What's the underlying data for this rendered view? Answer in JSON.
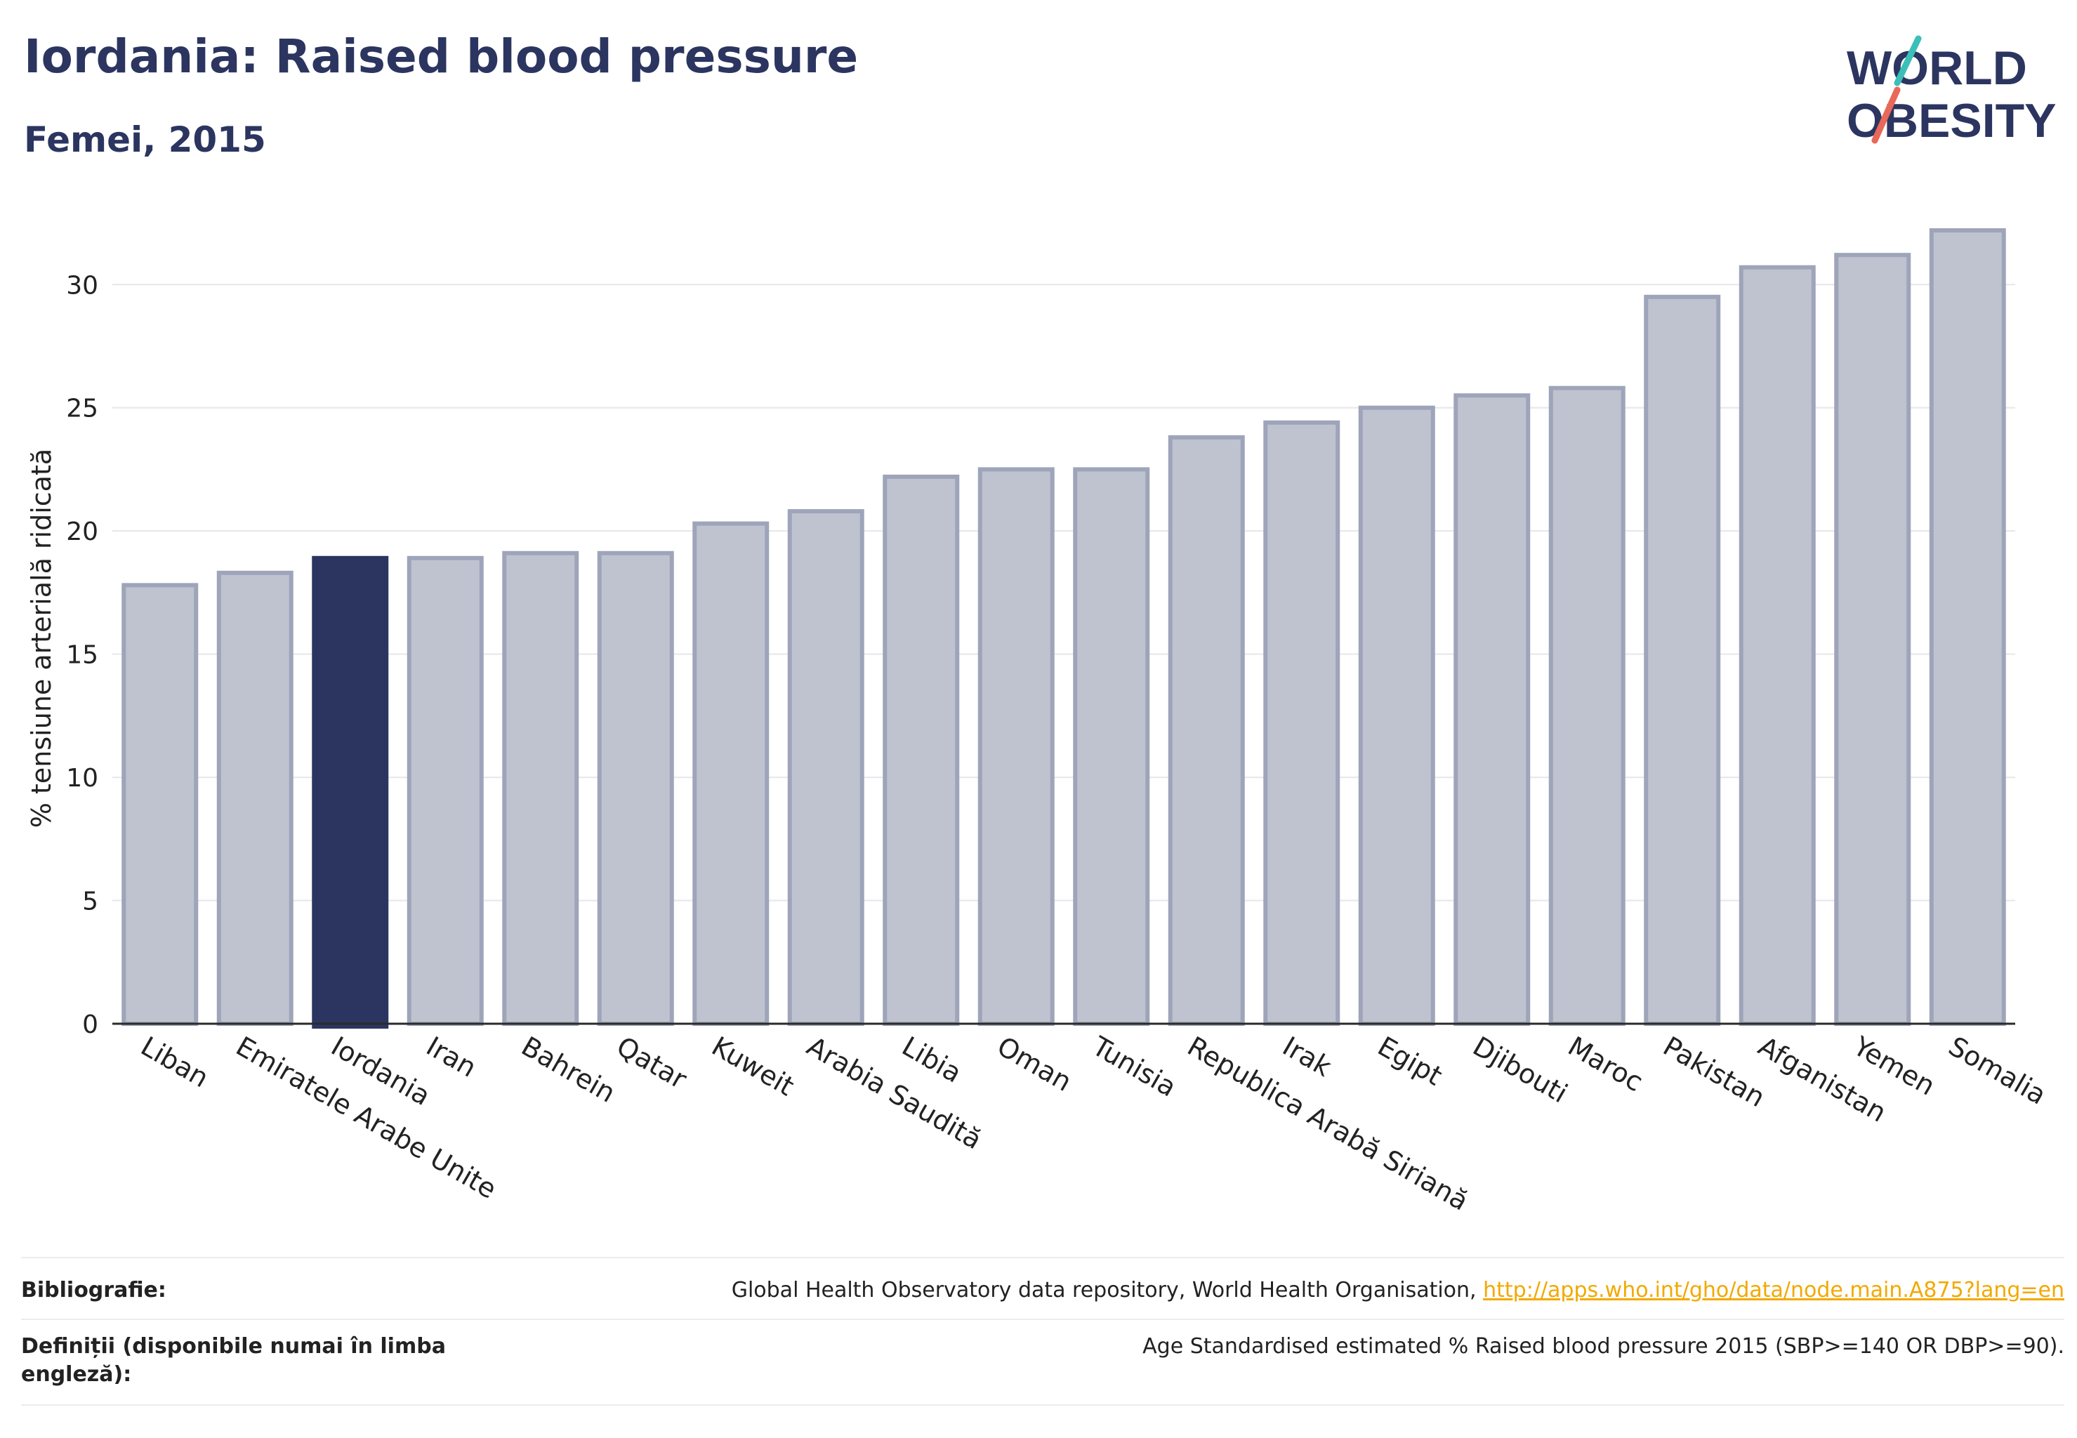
{
  "header": {
    "title": "Iordania: Raised blood pressure",
    "subtitle": "Femei, 2015"
  },
  "logo": {
    "line1": "WORLD",
    "line2": "OBESITY"
  },
  "chart_data": {
    "type": "bar",
    "title": "Iordania: Raised blood pressure",
    "subtitle": "Femei, 2015",
    "ylabel": "% tensiune arterială ridicată",
    "xlabel": "",
    "ylim": [
      0,
      33
    ],
    "yticks": [
      0,
      5,
      10,
      15,
      20,
      25,
      30
    ],
    "grid": true,
    "highlight": "Iordania",
    "colors": {
      "bar": "#bfc3d0",
      "bar_edge": "#9ea4b9",
      "highlight": "#2b3560"
    },
    "categories": [
      "Liban",
      "Emiratele Arabe Unite",
      "Iordania",
      "Iran",
      "Bahrein",
      "Qatar",
      "Kuweit",
      "Arabia Saudită",
      "Libia",
      "Oman",
      "Tunisia",
      "Republica Arabă Siriană",
      "Irak",
      "Egipt",
      "Djibouti",
      "Maroc",
      "Pakistan",
      "Afganistan",
      "Yemen",
      "Somalia"
    ],
    "values": [
      17.8,
      18.3,
      18.9,
      18.9,
      19.1,
      19.1,
      20.3,
      20.8,
      22.2,
      22.5,
      22.5,
      23.8,
      24.4,
      25.0,
      25.5,
      25.8,
      29.5,
      30.7,
      31.2,
      32.2
    ]
  },
  "footer": {
    "bibliography_label": "Bibliografie:",
    "bibliography_text": "Global Health Observatory data repository, World Health Organisation,",
    "bibliography_link": "http://apps.who.int/gho/data/node.main.A875?lang=en",
    "definitions_label": "Definiții (disponibile numai în limba engleză):",
    "definitions_text": "Age Standardised estimated % Raised blood pressure 2015 (SBP>=140 OR DBP>=90)."
  }
}
